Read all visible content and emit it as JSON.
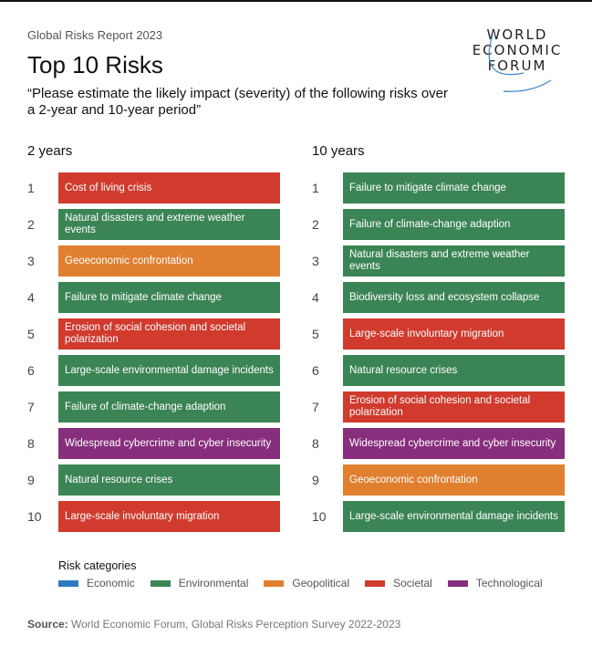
{
  "header": {
    "eyebrow": "Global Risks Report 2023",
    "title": "Top 10 Risks",
    "subtitle": "“Please estimate the likely impact (severity) of the following risks over a 2-year and 10-year period”",
    "logo": [
      "WORLD",
      "ECONOMIC",
      "FORUM"
    ]
  },
  "colors": {
    "Economic": "#2f7ac0",
    "Environmental": "#3b8455",
    "Geopolitical": "#e07f30",
    "Societal": "#d03b2e",
    "Technological": "#872e7d"
  },
  "columns": [
    {
      "heading": "2 years",
      "items": [
        {
          "rank": "1",
          "label": "Cost of living crisis",
          "category": "Societal"
        },
        {
          "rank": "2",
          "label": "Natural disasters and extreme weather events",
          "category": "Environmental"
        },
        {
          "rank": "3",
          "label": "Geoeconomic confrontation",
          "category": "Geopolitical"
        },
        {
          "rank": "4",
          "label": "Failure to mitigate climate change",
          "category": "Environmental"
        },
        {
          "rank": "5",
          "label": "Erosion of social cohesion and societal polarization",
          "category": "Societal"
        },
        {
          "rank": "6",
          "label": "Large-scale environmental damage incidents",
          "category": "Environmental"
        },
        {
          "rank": "7",
          "label": "Failure of climate-change adaption",
          "category": "Environmental"
        },
        {
          "rank": "8",
          "label": "Widespread cybercrime and cyber insecurity",
          "category": "Technological"
        },
        {
          "rank": "9",
          "label": "Natural resource crises",
          "category": "Environmental"
        },
        {
          "rank": "10",
          "label": "Large-scale involuntary migration",
          "category": "Societal"
        }
      ]
    },
    {
      "heading": "10 years",
      "items": [
        {
          "rank": "1",
          "label": "Failure to mitigate climate change",
          "category": "Environmental"
        },
        {
          "rank": "2",
          "label": "Failure of climate-change adaption",
          "category": "Environmental"
        },
        {
          "rank": "3",
          "label": "Natural disasters and extreme weather events",
          "category": "Environmental"
        },
        {
          "rank": "4",
          "label": "Biodiversity loss and ecosystem collapse",
          "category": "Environmental"
        },
        {
          "rank": "5",
          "label": "Large-scale involuntary migration",
          "category": "Societal"
        },
        {
          "rank": "6",
          "label": "Natural resource crises",
          "category": "Environmental"
        },
        {
          "rank": "7",
          "label": "Erosion of social cohesion and societal polarization",
          "category": "Societal"
        },
        {
          "rank": "8",
          "label": "Widespread cybercrime and cyber insecurity",
          "category": "Technological"
        },
        {
          "rank": "9",
          "label": "Geoeconomic confrontation",
          "category": "Geopolitical"
        },
        {
          "rank": "10",
          "label": "Large-scale environmental damage incidents",
          "category": "Environmental"
        }
      ]
    }
  ],
  "legend": {
    "title": "Risk categories",
    "items": [
      "Economic",
      "Environmental",
      "Geopolitical",
      "Societal",
      "Technological"
    ]
  },
  "source": {
    "label": "Source:",
    "text": " World Economic Forum, Global Risks Perception Survey 2022-2023"
  }
}
